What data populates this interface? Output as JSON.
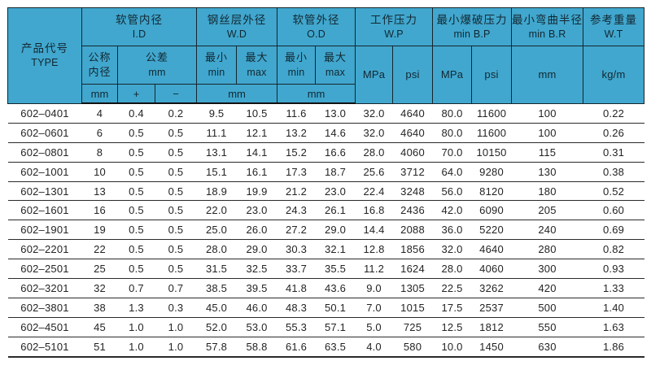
{
  "header": {
    "type": {
      "zh": "产品代号",
      "en": "TYPE"
    },
    "groups": [
      {
        "zh": "软管内径",
        "en": "I.D"
      },
      {
        "zh": "钢丝层外径",
        "en": "W.D"
      },
      {
        "zh": "软管外径",
        "en": "O.D"
      },
      {
        "zh": "工作压力",
        "en": "W.P"
      },
      {
        "zh": "最小爆破压力",
        "en": "min B.P"
      },
      {
        "zh": "最小弯曲半径",
        "en": "min B.R"
      },
      {
        "zh": "参考重量",
        "en": "W.T"
      }
    ],
    "sub": {
      "nominal": {
        "line1": "公称",
        "line2": "内径"
      },
      "tolerance": {
        "line1": "公差",
        "line2": "mm"
      },
      "min": {
        "zh": "最小",
        "en": "min"
      },
      "max": {
        "zh": "最大",
        "en": "max"
      }
    },
    "units": {
      "id_mm": "mm",
      "plus": "+",
      "minus": "−",
      "wd_mm": "mm",
      "od_mm": "mm",
      "wp_mpa": "MPa",
      "wp_psi": "psi",
      "bp_mpa": "MPa",
      "bp_psi": "psi",
      "br_mm": "mm",
      "wt_kgm": "kg/m"
    }
  },
  "colors": {
    "header_bg": "#41a7ce",
    "grid_line": "#15262e",
    "row_line": "#2a2a2a",
    "text": "#242424"
  },
  "columns": [
    "type",
    "id-nominal-mm",
    "tolerance-plus",
    "tolerance-minus",
    "wd-min",
    "wd-max",
    "od-min",
    "od-max",
    "wp-mpa",
    "wp-psi",
    "bp-mpa",
    "bp-psi",
    "br-mm",
    "wt-kgm"
  ],
  "rows": [
    [
      "602–0401",
      "4",
      "0.4",
      "0.2",
      "9.5",
      "10.5",
      "11.6",
      "13.0",
      "32.0",
      "4640",
      "80.0",
      "11600",
      "100",
      "0.22"
    ],
    [
      "602–0601",
      "6",
      "0.5",
      "0.5",
      "11.1",
      "12.1",
      "13.2",
      "14.6",
      "32.0",
      "4640",
      "80.0",
      "11600",
      "100",
      "0.26"
    ],
    [
      "602–0801",
      "8",
      "0.5",
      "0.5",
      "13.1",
      "14.1",
      "15.2",
      "16.6",
      "28.0",
      "4060",
      "70.0",
      "10150",
      "115",
      "0.31"
    ],
    [
      "602–1001",
      "10",
      "0.5",
      "0.5",
      "15.1",
      "16.1",
      "17.3",
      "18.7",
      "25.6",
      "3712",
      "64.0",
      "9280",
      "130",
      "0.38"
    ],
    [
      "602–1301",
      "13",
      "0.5",
      "0.5",
      "18.9",
      "19.9",
      "21.2",
      "23.0",
      "22.4",
      "3248",
      "56.0",
      "8120",
      "180",
      "0.52"
    ],
    [
      "602–1601",
      "16",
      "0.5",
      "0.5",
      "22.0",
      "23.0",
      "24.3",
      "26.1",
      "16.8",
      "2436",
      "42.0",
      "6090",
      "205",
      "0.60"
    ],
    [
      "602–1901",
      "19",
      "0.5",
      "0.5",
      "25.0",
      "26.0",
      "27.2",
      "29.0",
      "14.4",
      "2088",
      "36.0",
      "5220",
      "240",
      "0.69"
    ],
    [
      "602–2201",
      "22",
      "0.5",
      "0.5",
      "28.0",
      "29.0",
      "30.3",
      "32.1",
      "12.8",
      "1856",
      "32.0",
      "4640",
      "280",
      "0.82"
    ],
    [
      "602–2501",
      "25",
      "0.5",
      "0.5",
      "31.5",
      "32.5",
      "33.7",
      "35.5",
      "11.2",
      "1624",
      "28.0",
      "4060",
      "300",
      "0.93"
    ],
    [
      "602–3201",
      "32",
      "0.7",
      "0.7",
      "38.5",
      "39.5",
      "41.8",
      "43.6",
      "9.0",
      "1305",
      "22.5",
      "3262",
      "420",
      "1.33"
    ],
    [
      "602–3801",
      "38",
      "1.3",
      "0.3",
      "45.0",
      "46.0",
      "48.3",
      "50.1",
      "7.0",
      "1015",
      "17.5",
      "2537",
      "500",
      "1.40"
    ],
    [
      "602–4501",
      "45",
      "1.0",
      "1.0",
      "52.0",
      "53.0",
      "55.3",
      "57.1",
      "5.0",
      "725",
      "12.5",
      "1812",
      "550",
      "1.63"
    ],
    [
      "602–5101",
      "51",
      "1.0",
      "1.0",
      "57.8",
      "58.8",
      "61.6",
      "63.5",
      "4.0",
      "580",
      "10.0",
      "1450",
      "630",
      "1.86"
    ]
  ]
}
